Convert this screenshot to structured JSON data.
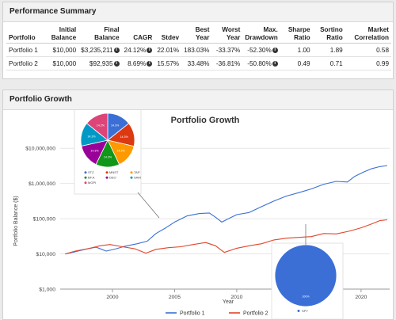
{
  "summary": {
    "title": "Performance Summary",
    "headers": [
      "Portfolio",
      "Initial Balance",
      "Final Balance",
      "CAGR",
      "Stdev",
      "Best Year",
      "Worst Year",
      "Max. Drawdown",
      "Sharpe Ratio",
      "Sortino Ratio",
      "Market Correlation"
    ],
    "rows": [
      {
        "name": "Portfolio 1",
        "initial": "$10,000",
        "final": "$3,235,211",
        "cagr": "24.12%",
        "stdev": "22.01%",
        "best": "183.03%",
        "worst": "-33.37%",
        "drawdown": "-52.30%",
        "sharpe": "1.00",
        "sortino": "1.89",
        "corr": "0.58"
      },
      {
        "name": "Portfolio 2",
        "initial": "$10,000",
        "final": "$92,935",
        "cagr": "8.69%",
        "stdev": "15.57%",
        "best": "33.48%",
        "worst": "-36.81%",
        "drawdown": "-50.80%",
        "sharpe": "0.49",
        "sortino": "0.71",
        "corr": "0.99"
      }
    ],
    "info_icon": "info-circle-icon"
  },
  "growth": {
    "title": "Portfolio Growth",
    "chart_data": [
      {
        "type": "line",
        "title": "Portfolio Growth",
        "xlabel": "Year",
        "ylabel": "Portfolio Balance ($)",
        "yscale": "log",
        "ylim": [
          1000,
          30000000
        ],
        "xlim": [
          1995.8,
          2022.3
        ],
        "yticks": [
          "$1,000",
          "$10,000",
          "$100,000",
          "$1,000,000",
          "$10,000,000"
        ],
        "xticks": [
          "2000",
          "2005",
          "2010",
          "2015",
          "2020"
        ],
        "legend": "bottom-center",
        "series": [
          {
            "name": "Portfolio 1",
            "color": "#3b6fd6",
            "x": [
              1996.2,
              1997,
              1998,
              1998.7,
              1999.5,
              2000.3,
              2001,
              2002,
              2002.8,
              2003.5,
              2004.3,
              2005,
              2006,
              2007,
              2007.8,
              2008.3,
              2008.8,
              2009.2,
              2010,
              2011,
              2012,
              2013,
              2014,
              2015,
              2016,
              2017,
              2018,
              2018.9,
              2019.5,
              2020.2,
              2020.8,
              2021.5,
              2022.1
            ],
            "y": [
              10000,
              11500,
              14000,
              15500,
              12000,
              14000,
              16500,
              19500,
              23000,
              38000,
              55000,
              80000,
              120000,
              140000,
              145000,
              110000,
              80000,
              95000,
              130000,
              150000,
              220000,
              320000,
              440000,
              550000,
              700000,
              950000,
              1150000,
              1100000,
              1600000,
              2100000,
              2600000,
              3000000,
              3235211
            ]
          },
          {
            "name": "Portfolio 2",
            "color": "#e0452b",
            "x": [
              1996.2,
              1997,
              1998,
              1999,
              1999.8,
              2000.8,
              2001.8,
              2002.7,
              2003.5,
              2004.5,
              2005.5,
              2006.5,
              2007.5,
              2008.3,
              2009,
              2010,
              2011,
              2012,
              2013,
              2014,
              2015,
              2016,
              2017,
              2018,
              2019,
              2020,
              2020.8,
              2021.5,
              2022.1
            ],
            "y": [
              10000,
              12000,
              14000,
              17000,
              18500,
              16000,
              14000,
              10500,
              13500,
              15000,
              16000,
              18500,
              21000,
              17000,
              11000,
              14500,
              17000,
              19500,
              25000,
              28000,
              29500,
              31000,
              38000,
              37000,
              44000,
              55000,
              70000,
              88000,
              92935
            ]
          }
        ]
      },
      {
        "type": "pie",
        "series_name": "Portfolio 1",
        "categories": [
          "STZ",
          "MNST",
          "TAP",
          "BF.A",
          "DEO",
          "SAM",
          "MGPI"
        ],
        "values": [
          14.3,
          14.3,
          14.3,
          14.3,
          14.3,
          14.3,
          14.2
        ],
        "labels": [
          "14.3%",
          "14.3%",
          "14.3%",
          "14.3%",
          "14.3%",
          "14.3%",
          "14.2%"
        ],
        "colors": [
          "#3b6fd6",
          "#dc3912",
          "#ff9900",
          "#109618",
          "#990099",
          "#0099c6",
          "#dd4477"
        ]
      },
      {
        "type": "pie",
        "series_name": "Portfolio 2",
        "categories": [
          "SPY"
        ],
        "values": [
          100
        ],
        "labels": [
          "100%"
        ],
        "colors": [
          "#3b6fd6"
        ]
      }
    ]
  }
}
